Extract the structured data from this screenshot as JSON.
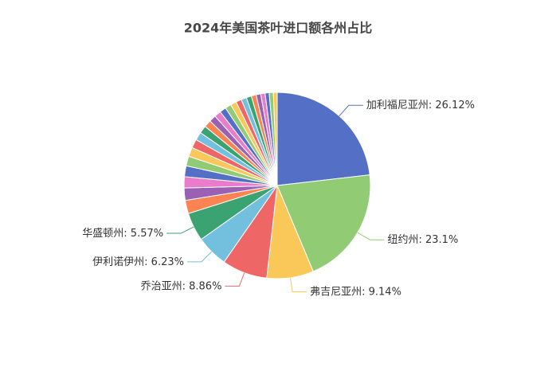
{
  "chart_data": {
    "type": "pie",
    "title": "2024年美国茶叶进口额各州占比",
    "categories": [
      "加利福尼亚州",
      "纽约州",
      "弗吉尼亚州",
      "乔治亚州",
      "伊利诺伊州",
      "华盛顿州",
      null,
      null,
      null,
      null,
      null,
      null,
      null,
      null,
      null,
      null,
      null,
      null,
      null,
      null,
      null,
      null,
      null,
      null,
      null,
      null,
      null,
      null,
      null,
      null
    ],
    "values": [
      26.12,
      23.1,
      9.14,
      8.86,
      6.23,
      5.57,
      2.6,
      2.4,
      2.2,
      2.1,
      1.9,
      1.8,
      1.7,
      1.6,
      1.5,
      1.4,
      1.35,
      1.3,
      1.25,
      1.2,
      1.15,
      1.1,
      1.05,
      1.0,
      0.95,
      0.9,
      0.85,
      0.8,
      0.8,
      0.75
    ],
    "value_labels": [
      ": 26.12%",
      ": 23.1%",
      ": 9.14%",
      ": 8.86%",
      ": 6.23%",
      ": 5.57%",
      null,
      null,
      null,
      null,
      null,
      null,
      null,
      null,
      null,
      null,
      null,
      null,
      null,
      null,
      null,
      null,
      null,
      null,
      null,
      null,
      null,
      null,
      null,
      null
    ],
    "colors": [
      "#5470c6",
      "#91cc75",
      "#fac858",
      "#ee6666",
      "#73c0de",
      "#3ba272",
      "#fc8452",
      "#9a60b4",
      "#ea7ccc"
    ]
  }
}
